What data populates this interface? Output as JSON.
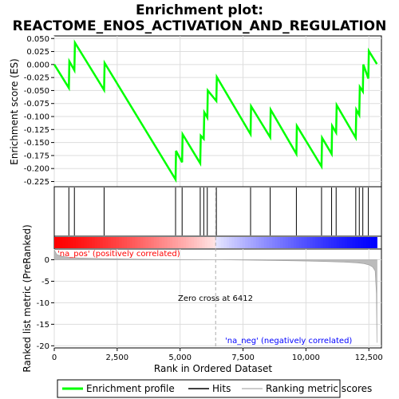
{
  "chart_data": {
    "type": "line",
    "title_line1": "Enrichment plot:",
    "title_line2": "REACTOME_ENOS_ACTIVATION_AND_REGULATION",
    "xlabel": "Rank in Ordered Dataset",
    "ylabel_top": "Enrichment score (ES)",
    "ylabel_bottom": "Ranked list metric (PreRanked)",
    "xlim": [
      0,
      13000
    ],
    "x_ticks": [
      0,
      2500,
      5000,
      7500,
      10000,
      12500
    ],
    "x_tick_labels": [
      "0",
      "2,500",
      "5,000",
      "7,500",
      "10,000",
      "12,500"
    ],
    "es_ylim": [
      -0.235,
      0.055
    ],
    "es_ticks": [
      0.05,
      0.025,
      0.0,
      -0.025,
      -0.05,
      -0.075,
      -0.1,
      -0.125,
      -0.15,
      -0.175,
      -0.2,
      -0.225
    ],
    "es_tick_labels": [
      "0.050",
      "0.025",
      "0.000",
      "-0.025",
      "-0.050",
      "-0.075",
      "-0.100",
      "-0.125",
      "-0.150",
      "-0.175",
      "-0.200",
      "-0.225"
    ],
    "metric_ylim": [
      -20.5,
      2.5
    ],
    "metric_ticks": [
      0,
      -5,
      -10,
      -15,
      -20
    ],
    "metric_tick_labels": [
      "0",
      "-5",
      "-10",
      "-15",
      "-20"
    ],
    "enrichment_profile": {
      "name": "Enrichment profile",
      "color": "#00ff00",
      "x": [
        0,
        580,
        600,
        800,
        820,
        1980,
        2000,
        4820,
        4840,
        5080,
        5100,
        5800,
        5820,
        5940,
        5960,
        6080,
        6100,
        6440,
        6460,
        7800,
        7820,
        8580,
        8600,
        9620,
        9640,
        10620,
        10640,
        11020,
        11040,
        11200,
        11220,
        11980,
        12000,
        12120,
        12140,
        12260,
        12280,
        12480,
        12500,
        12820
      ],
      "y": [
        0.0,
        -0.045,
        0.006,
        -0.011,
        0.042,
        -0.049,
        0.003,
        -0.221,
        -0.166,
        -0.188,
        -0.134,
        -0.19,
        -0.137,
        -0.143,
        -0.092,
        -0.102,
        -0.05,
        -0.07,
        -0.024,
        -0.134,
        -0.08,
        -0.14,
        -0.087,
        -0.172,
        -0.118,
        -0.196,
        -0.141,
        -0.172,
        -0.118,
        -0.131,
        -0.078,
        -0.141,
        -0.087,
        -0.097,
        -0.043,
        -0.052,
        0.0,
        -0.027,
        0.026,
        0.001
      ]
    },
    "hits": [
      580,
      800,
      1980,
      4820,
      5080,
      5800,
      5940,
      6080,
      6440,
      7800,
      8580,
      9620,
      10620,
      11020,
      11200,
      11980,
      12120,
      12260,
      12480
    ],
    "hits_name": "Hits",
    "ranking_name": "Ranking metric scores",
    "ranking_metric": {
      "x": [
        0,
        100,
        300,
        600,
        1000,
        2000,
        3000,
        4000,
        5000,
        6000,
        6412,
        7000,
        8000,
        9000,
        10000,
        11000,
        11500,
        12000,
        12300,
        12500,
        12650,
        12750,
        12800,
        12820
      ],
      "y": [
        2.3,
        1.2,
        0.8,
        0.55,
        0.4,
        0.25,
        0.15,
        0.08,
        0.04,
        0.01,
        0.0,
        -0.05,
        -0.12,
        -0.2,
        -0.3,
        -0.45,
        -0.55,
        -0.7,
        -0.9,
        -1.2,
        -1.7,
        -2.6,
        -8.0,
        -19.3
      ]
    },
    "zero_cross": 6412,
    "zero_cross_label": "Zero cross at 6412",
    "pos_label": "'na_pos' (positively correlated)",
    "neg_label": "'na_neg' (negatively correlated)",
    "pos_color": "#ff0000",
    "neg_color": "#0000ff",
    "legend": [
      "Enrichment profile",
      "Hits",
      "Ranking metric scores"
    ],
    "legend_position": "bottom",
    "grid": true
  }
}
